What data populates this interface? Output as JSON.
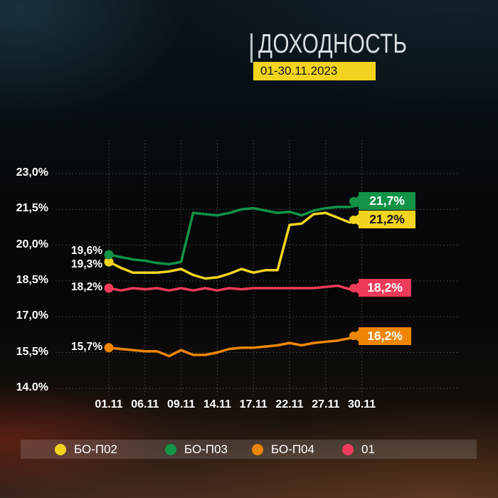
{
  "header": {
    "title": "ДОХОДНОСТЬ",
    "period_badge": "01-30.11.2023",
    "accent_color": "#F2D41F"
  },
  "chart_data": {
    "type": "line",
    "title": "ДОХОДНОСТЬ",
    "subtitle": "01-30.11.2023",
    "ylabel": "",
    "xlabel": "",
    "ylim": [
      14.0,
      23.0
    ],
    "grid": "dotted",
    "legend_position": "bottom",
    "y_ticks": [
      "23,0%",
      "21,5%",
      "20,0%",
      "18,5%",
      "17,0%",
      "15,5%",
      "14.0%"
    ],
    "y_tick_values": [
      23.0,
      21.5,
      20.0,
      18.5,
      17.0,
      15.5,
      14.0
    ],
    "x_ticks": [
      "01.11",
      "06.11",
      "09.11",
      "14.11",
      "17.11",
      "22.11",
      "27.11",
      "30.11"
    ],
    "x_tick_indices": [
      0,
      3,
      6,
      9,
      12,
      15,
      18,
      21
    ],
    "series": [
      {
        "name": "БО-П02",
        "color": "#F2D41F",
        "end_text_color": "#141414",
        "start_label": "19,3%",
        "end_label": "21,2%",
        "values": [
          19.3,
          19.05,
          18.85,
          18.85,
          18.85,
          18.9,
          19.0,
          18.75,
          18.6,
          18.65,
          18.8,
          19.0,
          18.85,
          18.95,
          18.95,
          20.85,
          20.9,
          21.3,
          21.35,
          21.15,
          20.95,
          21.2
        ]
      },
      {
        "name": "БО-П03",
        "color": "#129348",
        "end_text_color": "#ffffff",
        "start_label": "19,6%",
        "end_label": "21,7%",
        "values": [
          19.6,
          19.5,
          19.4,
          19.35,
          19.25,
          19.2,
          19.3,
          21.35,
          21.3,
          21.25,
          21.35,
          21.5,
          21.55,
          21.45,
          21.35,
          21.4,
          21.25,
          21.45,
          21.55,
          21.6,
          21.6,
          21.7
        ]
      },
      {
        "name": "БО-П04",
        "color": "#EF8503",
        "end_text_color": "#ffffff",
        "start_label": "15,7%",
        "end_label": "16,2%",
        "values": [
          15.7,
          15.65,
          15.6,
          15.55,
          15.55,
          15.35,
          15.6,
          15.4,
          15.4,
          15.5,
          15.65,
          15.7,
          15.7,
          15.75,
          15.8,
          15.9,
          15.8,
          15.9,
          15.95,
          16.0,
          16.1,
          16.2
        ]
      },
      {
        "name": "01",
        "color": "#EE3B59",
        "end_text_color": "#ffffff",
        "start_label": "18,2%",
        "end_label": "18,2%",
        "values": [
          18.2,
          18.1,
          18.2,
          18.15,
          18.2,
          18.1,
          18.2,
          18.1,
          18.2,
          18.1,
          18.2,
          18.15,
          18.2,
          18.2,
          18.2,
          18.2,
          18.2,
          18.2,
          18.25,
          18.3,
          18.15,
          18.2
        ]
      }
    ]
  }
}
